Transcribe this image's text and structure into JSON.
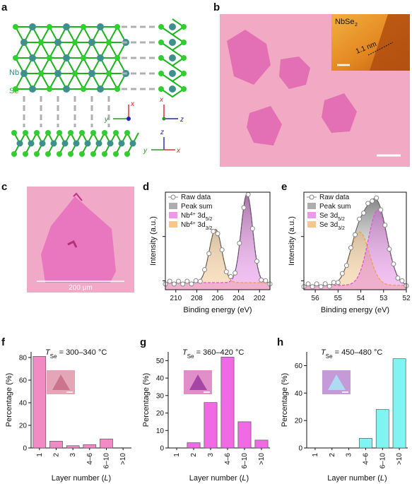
{
  "panels": {
    "a": {
      "letter": "a",
      "labels": {
        "nb": "Nb",
        "se": "Se"
      },
      "axes1": {
        "y": "y",
        "x": "x"
      },
      "axes2": {
        "x": "x",
        "z": "z"
      },
      "axes3": {
        "z": "z",
        "y": "y",
        "x": "x"
      },
      "colors": {
        "nb": "#3f8f8f",
        "se": "#2fcf2f",
        "bond": "#1db31d",
        "dash": "#b0b0b0"
      }
    },
    "b": {
      "letter": "b",
      "inset_label": "NbSe",
      "inset_sub": "2",
      "height_label": "1.1 nm",
      "colors": {
        "background": "#f2a9c4",
        "flake": "#e36fb4",
        "afm": "#e6891c"
      }
    },
    "c": {
      "letter": "c",
      "scale_label": "200 μm",
      "colors": {
        "background": "#f0a9c6",
        "flake": "#e877c0"
      }
    },
    "d": {
      "letter": "d"
    },
    "e": {
      "letter": "e"
    },
    "f": {
      "letter": "f"
    },
    "g": {
      "letter": "g"
    },
    "h": {
      "letter": "h"
    }
  },
  "chart_data": [
    {
      "panel": "d",
      "type": "line",
      "xlabel": "Binding energy (eV)",
      "ylabel": "Intensity (a.u.)",
      "x_reversed": true,
      "xlim": [
        211,
        201
      ],
      "xticks": [
        "210",
        "208",
        "206",
        "204",
        "202"
      ],
      "legend": [
        {
          "label": "Raw data",
          "kind": "raw"
        },
        {
          "label": "Peak sum",
          "kind": "sum"
        },
        {
          "label_main": "Nb",
          "sup": "4+",
          "label_rest": " 3d",
          "sub": "5/2",
          "kind": "p1"
        },
        {
          "label_main": "Nb",
          "sup": "4+",
          "label_rest": " 3d",
          "sub": "3/2",
          "kind": "p2"
        }
      ],
      "peaks": [
        {
          "name": "3d5/2",
          "center": 203.2,
          "height": 1.0,
          "width": 0.55
        },
        {
          "name": "3d3/2",
          "center": 206.2,
          "height": 0.6,
          "width": 0.6
        }
      ],
      "baseline": 0.08,
      "colors": {
        "raw": "#888888",
        "sum": "#555555",
        "p1": "#dd55dd",
        "p2": "#f0a040"
      }
    },
    {
      "panel": "e",
      "type": "line",
      "xlabel": "Binding energy (eV)",
      "ylabel": "Intensity (a.u.)",
      "x_reversed": true,
      "xlim": [
        56.5,
        52
      ],
      "xticks": [
        "56",
        "55",
        "54",
        "53",
        "52"
      ],
      "legend": [
        {
          "label": "Raw data",
          "kind": "raw"
        },
        {
          "label": "Peak sum",
          "kind": "sum"
        },
        {
          "label_main": "Se 3d",
          "sub": "5/2",
          "kind": "p1"
        },
        {
          "label_main": "Se 3d",
          "sub": "3/2",
          "kind": "p2"
        }
      ],
      "peaks": [
        {
          "name": "3d5/2",
          "center": 53.25,
          "height": 0.85,
          "width": 0.42
        },
        {
          "name": "3d3/2",
          "center": 54.05,
          "height": 0.6,
          "width": 0.42
        }
      ],
      "baseline": 0.05,
      "colors": {
        "raw": "#888888",
        "sum": "#555555",
        "p1": "#dd55dd",
        "p2": "#f0a040"
      }
    },
    {
      "panel": "f",
      "type": "bar",
      "title_main": "T",
      "title_sub": "Se",
      "title_rest": " = 300–340 °C",
      "xlabel_main": "Layer number (",
      "xlabel_it": "L",
      "xlabel_end": ")",
      "ylabel": "Percentage (%)",
      "categories": [
        "1",
        "2",
        "3",
        "4–6",
        "6–10",
        ">10"
      ],
      "values": [
        81,
        6,
        2,
        3,
        8,
        0
      ],
      "ylim": [
        0,
        85
      ],
      "yticks": [
        0,
        20,
        40,
        60,
        80
      ],
      "colors": {
        "bar": "#f28ac6",
        "inset_bg": "#e4a6b6",
        "inset_flake": "#c76b8a"
      }
    },
    {
      "panel": "g",
      "type": "bar",
      "title_main": "T",
      "title_sub": "Se",
      "title_rest": " = 360–420 °C",
      "xlabel_main": "Layer number (",
      "xlabel_it": "L",
      "xlabel_end": ")",
      "ylabel": "Percentage (%)",
      "categories": [
        "1",
        "2",
        "3",
        "4–6",
        "6–10",
        ">10"
      ],
      "values": [
        0,
        3,
        26,
        52,
        15,
        4.5
      ],
      "ylim": [
        0,
        55
      ],
      "yticks": [
        0,
        10,
        20,
        30,
        40,
        50
      ],
      "colors": {
        "bar": "#f06ae6",
        "inset_bg": "#e08fc8",
        "inset_flake": "#9a3aa0"
      }
    },
    {
      "panel": "h",
      "type": "bar",
      "title_main": "T",
      "title_sub": "Se",
      "title_rest": " = 450–480 °C",
      "xlabel_main": "Layer number (",
      "xlabel_it": "L",
      "xlabel_end": ")",
      "ylabel": "Percentage (%)",
      "categories": [
        "1",
        "2",
        "3",
        "4–6",
        "6–10",
        ">10"
      ],
      "values": [
        0,
        0,
        0,
        7,
        28,
        65
      ],
      "ylim": [
        0,
        70
      ],
      "yticks": [
        0,
        20,
        40,
        60
      ],
      "colors": {
        "bar": "#7ff4f0",
        "inset_bg": "#c59ad9",
        "inset_flake": "#a8e6f5"
      }
    }
  ]
}
